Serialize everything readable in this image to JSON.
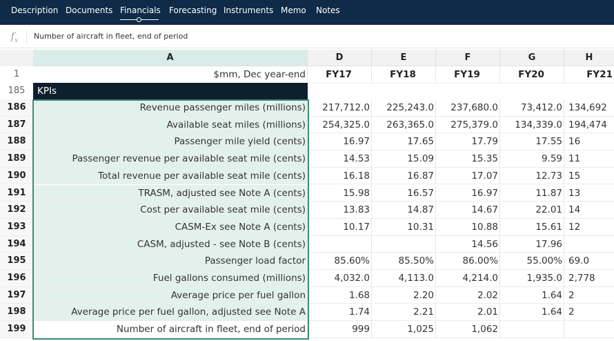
{
  "nav": {
    "tabs": [
      "Description",
      "Documents",
      "Financials",
      "Forecasting",
      "Instruments",
      "Memo",
      "Notes"
    ],
    "active": "Financials"
  },
  "formula_bar": {
    "fx": "fx",
    "content": "Number of aircraft in fleet, end of period"
  },
  "sheet": {
    "columns": [
      "A",
      "D",
      "E",
      "F",
      "G",
      "H"
    ],
    "header_row": {
      "row_number": "1",
      "label": "$mm, Dec year-end",
      "years": [
        "FY17",
        "FY18",
        "FY19",
        "FY20",
        "FY21"
      ]
    },
    "section_row": {
      "row_number": "185",
      "label": "KPIs"
    },
    "rows": [
      {
        "num": "186",
        "label": "Revenue passenger miles (millions)",
        "values": [
          "217,712.0",
          "225,243.0",
          "237,680.0",
          "73,412.0",
          "134,692"
        ]
      },
      {
        "num": "187",
        "label": "Available seat miles (millions)",
        "values": [
          "254,325.0",
          "263,365.0",
          "275,379.0",
          "134,339.0",
          "194,474"
        ]
      },
      {
        "num": "188",
        "label": "Passenger mile yield (cents)",
        "values": [
          "16.97",
          "17.65",
          "17.79",
          "17.55",
          "16"
        ]
      },
      {
        "num": "189",
        "label": "Passenger revenue per available seat mile (cents)",
        "values": [
          "14.53",
          "15.09",
          "15.35",
          "9.59",
          "11"
        ]
      },
      {
        "num": "190",
        "label": "Total revenue per available seat mile (cents)",
        "values": [
          "16.18",
          "16.87",
          "17.07",
          "12.73",
          "15"
        ]
      },
      {
        "num": "191",
        "label": "TRASM, adjusted see Note A (cents)",
        "values": [
          "15.98",
          "16.57",
          "16.97",
          "11.87",
          "13"
        ]
      },
      {
        "num": "192",
        "label": "Cost per available seat mile (cents)",
        "values": [
          "13.83",
          "14.87",
          "14.67",
          "22.01",
          "14"
        ]
      },
      {
        "num": "193",
        "label": "CASM-Ex see Note A (cents)",
        "values": [
          "10.17",
          "10.31",
          "10.88",
          "15.61",
          "12"
        ]
      },
      {
        "num": "194",
        "label": "CASM, adjusted - see Note B (cents)",
        "values": [
          "",
          "",
          "14.56",
          "17.96",
          ""
        ]
      },
      {
        "num": "195",
        "label": "Passenger load factor",
        "values": [
          "85.60%",
          "85.50%",
          "86.00%",
          "55.00%",
          "69.0"
        ]
      },
      {
        "num": "196",
        "label": "Fuel gallons consumed (millions)",
        "values": [
          "4,032.0",
          "4,113.0",
          "4,214.0",
          "1,935.0",
          "2,778"
        ]
      },
      {
        "num": "197",
        "label": "Average price per fuel gallon",
        "values": [
          "1.68",
          "2.20",
          "2.02",
          "1.64",
          "2"
        ]
      },
      {
        "num": "198",
        "label": "Average price per fuel gallon, adjusted see Note A",
        "values": [
          "1.74",
          "2.21",
          "2.01",
          "1.64",
          "2"
        ]
      },
      {
        "num": "199",
        "label": "Number of aircraft in fleet, end of period",
        "values": [
          "999",
          "1,025",
          "1,062",
          "",
          ""
        ]
      }
    ]
  },
  "colors": {
    "nav_bg": "#0f2b47",
    "selection": "#3c8c79",
    "selection_fill": "#e3f1ed",
    "kpi_band": "#0f1f2e"
  }
}
